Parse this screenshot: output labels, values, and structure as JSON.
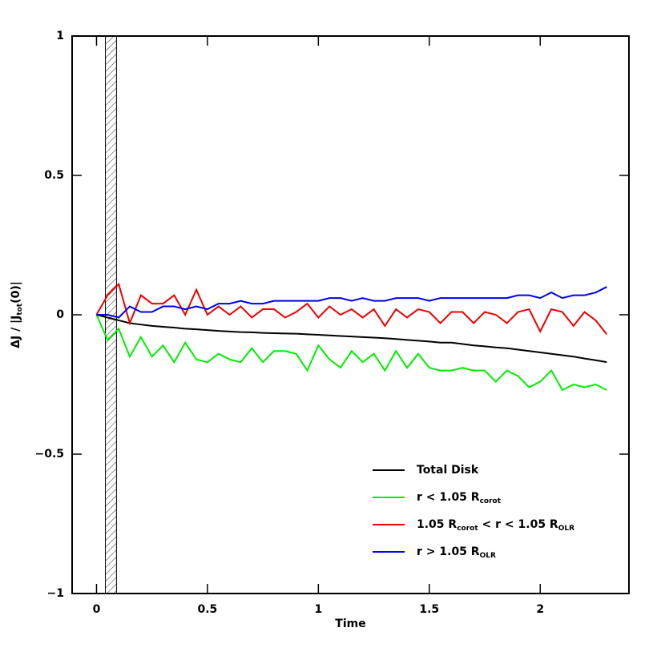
{
  "chart_data": {
    "type": "line",
    "x_label": "Time",
    "y_label": [
      {
        "text": "ΔJ / |J"
      },
      {
        "text": "tot",
        "sub": true
      },
      {
        "text": "(0)|"
      }
    ],
    "x": [
      0,
      0.05,
      0.1,
      0.15,
      0.2,
      0.25,
      0.3,
      0.35,
      0.4,
      0.45,
      0.5,
      0.55,
      0.6,
      0.65,
      0.7,
      0.75,
      0.8,
      0.85,
      0.9,
      0.95,
      1.0,
      1.05,
      1.1,
      1.15,
      1.2,
      1.25,
      1.3,
      1.35,
      1.4,
      1.45,
      1.5,
      1.55,
      1.6,
      1.65,
      1.7,
      1.75,
      1.8,
      1.85,
      1.9,
      1.95,
      2.0,
      2.05,
      2.1,
      2.15,
      2.2,
      2.25,
      2.3
    ],
    "series": [
      {
        "name": [
          {
            "text": "Total Disk"
          }
        ],
        "color": "#000000",
        "values": [
          0,
          -0.01,
          -0.02,
          -0.03,
          -0.035,
          -0.04,
          -0.043,
          -0.046,
          -0.05,
          -0.052,
          -0.055,
          -0.058,
          -0.06,
          -0.062,
          -0.063,
          -0.065,
          -0.066,
          -0.067,
          -0.068,
          -0.07,
          -0.072,
          -0.074,
          -0.076,
          -0.078,
          -0.08,
          -0.082,
          -0.084,
          -0.087,
          -0.09,
          -0.093,
          -0.096,
          -0.1,
          -0.1,
          -0.105,
          -0.11,
          -0.113,
          -0.117,
          -0.12,
          -0.125,
          -0.13,
          -0.135,
          -0.14,
          -0.145,
          -0.15,
          -0.157,
          -0.163,
          -0.17
        ]
      },
      {
        "name": [
          {
            "text": "r < 1.05 R"
          },
          {
            "text": "corot",
            "sub": true
          }
        ],
        "color": "#00ee00",
        "values": [
          0,
          -0.09,
          -0.05,
          -0.15,
          -0.08,
          -0.15,
          -0.11,
          -0.17,
          -0.1,
          -0.16,
          -0.17,
          -0.14,
          -0.16,
          -0.17,
          -0.12,
          -0.17,
          -0.13,
          -0.13,
          -0.14,
          -0.2,
          -0.11,
          -0.16,
          -0.19,
          -0.13,
          -0.17,
          -0.14,
          -0.2,
          -0.13,
          -0.19,
          -0.14,
          -0.19,
          -0.2,
          -0.2,
          -0.19,
          -0.2,
          -0.2,
          -0.24,
          -0.2,
          -0.22,
          -0.26,
          -0.24,
          -0.2,
          -0.27,
          -0.25,
          -0.26,
          -0.25,
          -0.27
        ]
      },
      {
        "name": [
          {
            "text": "1.05 R"
          },
          {
            "text": "corot",
            "sub": true
          },
          {
            "text": " < r < 1.05 R"
          },
          {
            "text": "OLR",
            "sub": true
          }
        ],
        "color": "#ee0000",
        "values": [
          0,
          0.07,
          0.11,
          -0.03,
          0.07,
          0.04,
          0.04,
          0.07,
          0.0,
          0.09,
          0.0,
          0.03,
          0.0,
          0.03,
          -0.01,
          0.02,
          0.02,
          -0.01,
          0.01,
          0.04,
          -0.01,
          0.03,
          0.0,
          0.02,
          -0.01,
          0.02,
          -0.04,
          0.02,
          -0.01,
          0.02,
          0.01,
          -0.03,
          0.01,
          0.01,
          -0.03,
          0.01,
          0.0,
          -0.03,
          0.01,
          0.02,
          -0.06,
          0.02,
          0.01,
          -0.04,
          0.01,
          -0.02,
          -0.07
        ]
      },
      {
        "name": [
          {
            "text": "r > 1.05 R"
          },
          {
            "text": "OLR",
            "sub": true
          }
        ],
        "color": "#0000ee",
        "values": [
          0,
          0.0,
          -0.01,
          0.03,
          0.01,
          0.01,
          0.03,
          0.03,
          0.02,
          0.03,
          0.02,
          0.04,
          0.04,
          0.05,
          0.04,
          0.04,
          0.05,
          0.05,
          0.05,
          0.05,
          0.05,
          0.06,
          0.06,
          0.05,
          0.06,
          0.05,
          0.05,
          0.06,
          0.06,
          0.06,
          0.05,
          0.06,
          0.06,
          0.06,
          0.06,
          0.06,
          0.06,
          0.06,
          0.07,
          0.07,
          0.06,
          0.08,
          0.06,
          0.07,
          0.07,
          0.08,
          0.1
        ]
      }
    ],
    "shaded_region": [
      0.04,
      0.09
    ],
    "xlim": [
      -0.11,
      2.4
    ],
    "ylim": [
      -1,
      1
    ],
    "xticks": [
      0,
      0.5,
      1,
      1.5,
      2
    ],
    "yticks": [
      {
        "value": -1,
        "label": "−1"
      },
      {
        "value": -0.5,
        "label": "−0.5"
      },
      0,
      0.5,
      1
    ],
    "legend": "lower right"
  }
}
